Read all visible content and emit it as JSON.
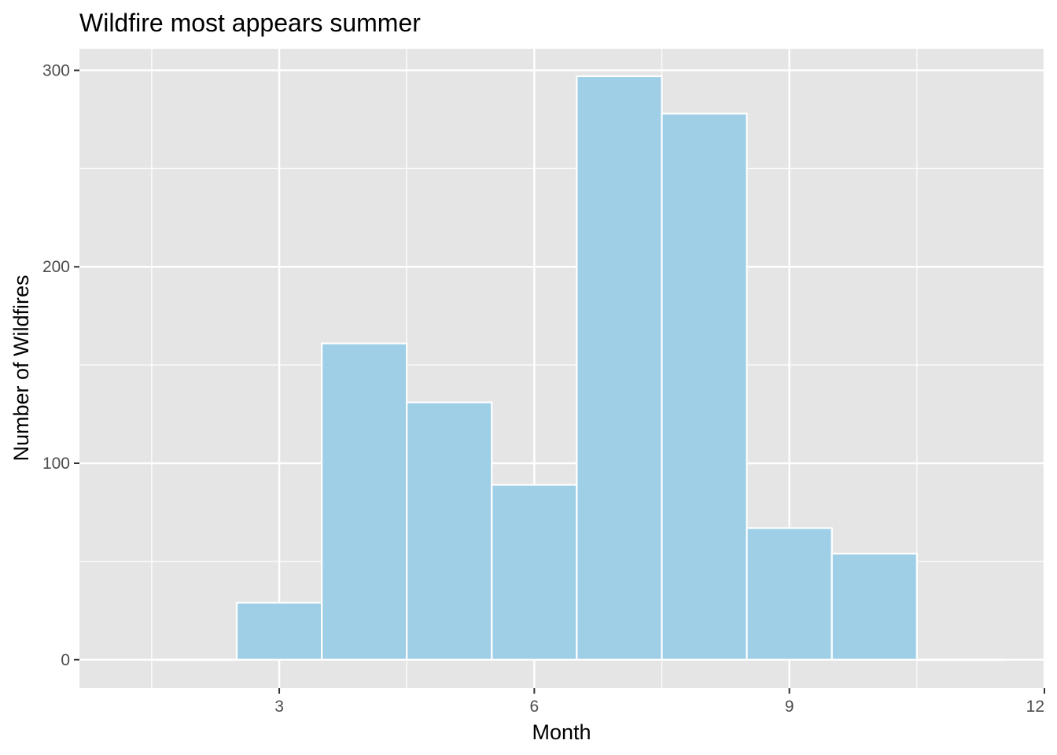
{
  "chart_data": {
    "type": "bar",
    "title": "Wildfire most appears summer",
    "xlabel": "Month",
    "ylabel": "Number of Wildfires",
    "bins": [
      {
        "x": 2,
        "value": 0
      },
      {
        "x": 3,
        "value": 29
      },
      {
        "x": 4,
        "value": 161
      },
      {
        "x": 5,
        "value": 131
      },
      {
        "x": 6,
        "value": 89
      },
      {
        "x": 7,
        "value": 297
      },
      {
        "x": 8,
        "value": 278
      },
      {
        "x": 9,
        "value": 67
      },
      {
        "x": 10,
        "value": 54
      },
      {
        "x": 11,
        "value": 0
      }
    ],
    "bin_width": 1,
    "xlim": [
      0.65,
      12.0
    ],
    "ylim": [
      -14.5,
      311
    ],
    "x_ticks": [
      3,
      6,
      9,
      12
    ],
    "y_ticks": [
      0,
      100,
      200,
      300
    ],
    "x_tick_labels": [
      "3",
      "6",
      "9",
      "12"
    ],
    "y_tick_labels": [
      "0",
      "100",
      "200",
      "300"
    ],
    "grid": true,
    "legend": "none",
    "colors": {
      "bar_fill": "#9ecfe7",
      "bar_stroke": "#ffffff",
      "panel_bg": "#e5e5e5",
      "grid": "#ffffff"
    }
  }
}
